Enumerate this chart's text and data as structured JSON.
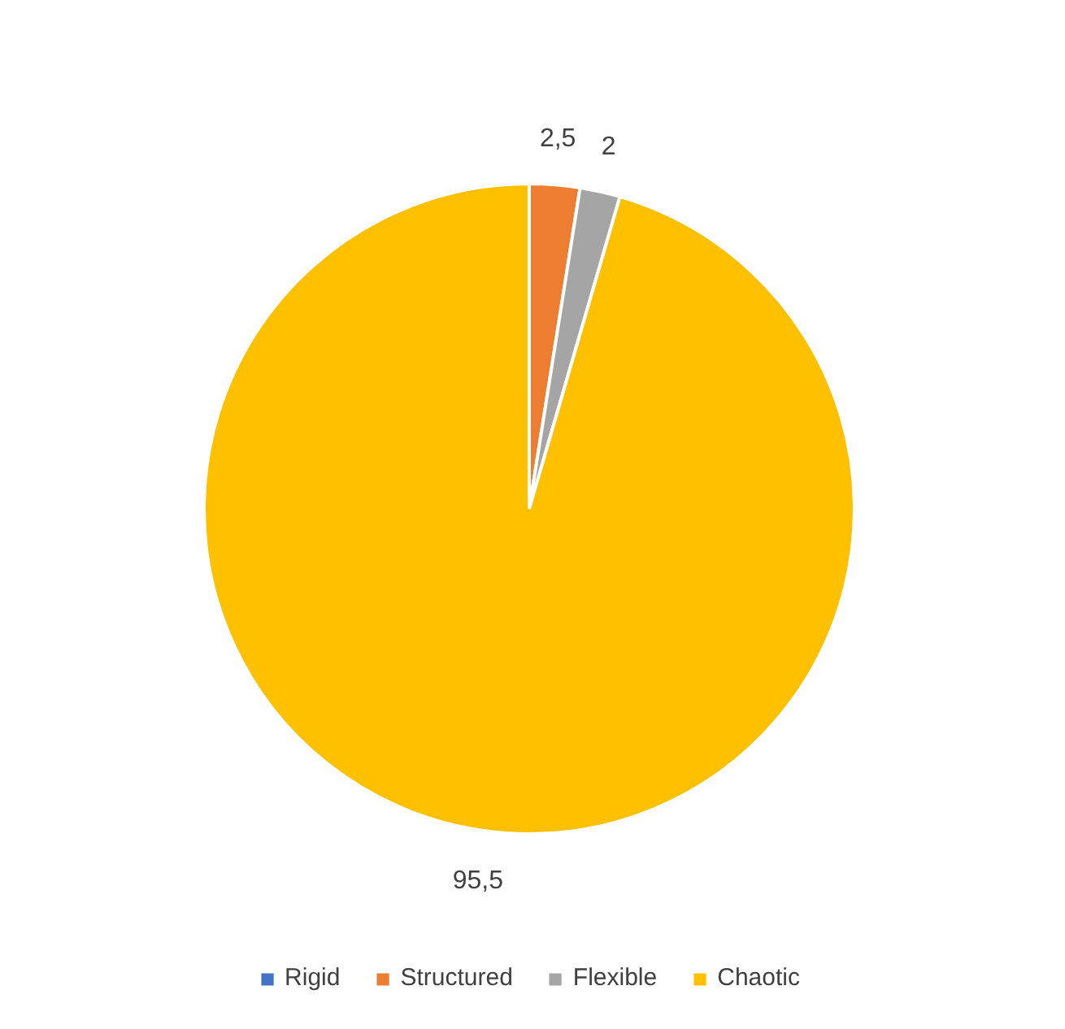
{
  "chart_data": {
    "type": "pie",
    "categories": [
      "Rigid",
      "Structured",
      "Flexible",
      "Chaotic"
    ],
    "values": [
      0,
      2.5,
      2,
      95.5
    ],
    "colors": [
      "#4472c4",
      "#ed7d31",
      "#a5a5a5",
      "#ffc000"
    ],
    "value_labels": [
      null,
      "2,5",
      "2",
      "95,5"
    ],
    "legend": "bottom"
  }
}
